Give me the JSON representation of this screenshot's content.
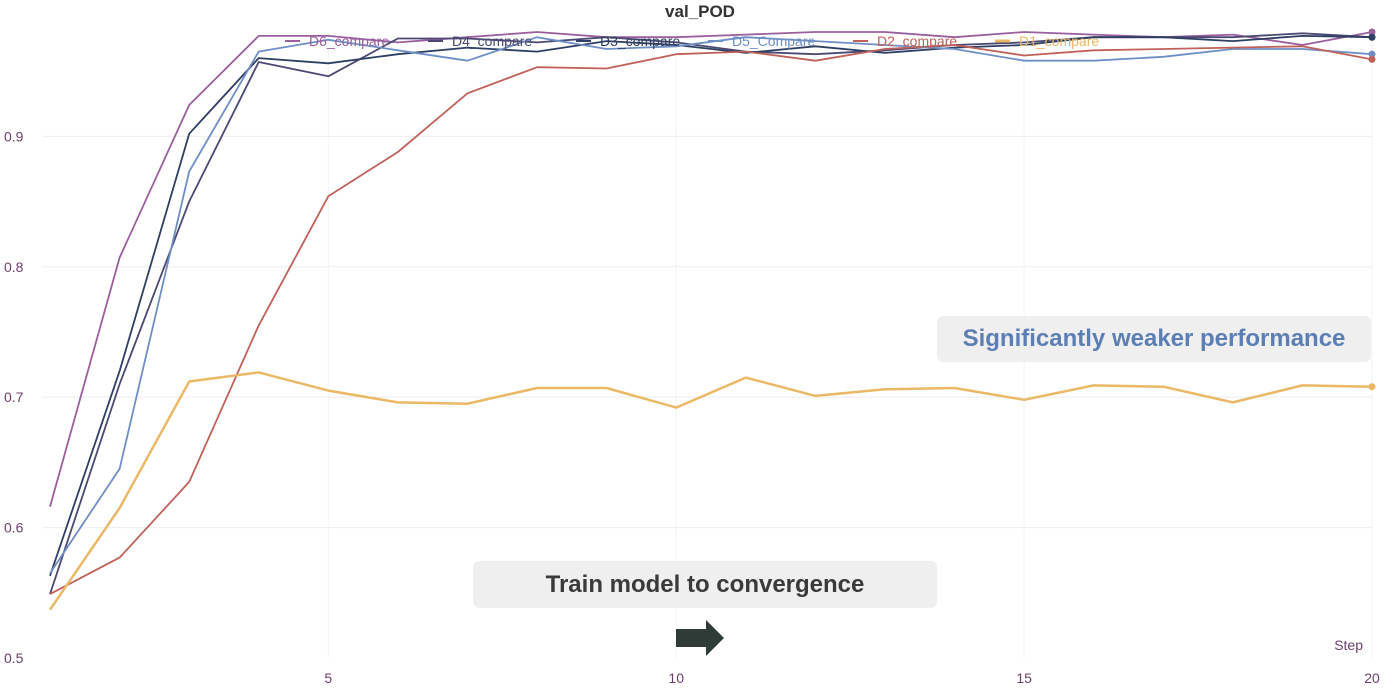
{
  "chart_data": {
    "type": "line",
    "title": "val_POD",
    "xlabel": "Step",
    "ylabel": "",
    "xlim": [
      1,
      20
    ],
    "ylim": [
      0.5,
      0.98
    ],
    "yticks": [
      0.5,
      0.6,
      0.7,
      0.8,
      0.9
    ],
    "xticks": [
      5,
      10,
      15,
      20
    ],
    "grid": true,
    "legend_position": "top",
    "x": [
      1,
      2,
      3,
      4,
      5,
      6,
      7,
      8,
      9,
      10,
      11,
      12,
      13,
      14,
      15,
      16,
      17,
      18,
      19,
      20
    ],
    "series": [
      {
        "name": "D6_compare",
        "color": "#9b5f9e",
        "values": [
          0.616,
          0.807,
          0.924,
          0.977,
          0.977,
          0.972,
          0.976,
          0.98,
          0.976,
          0.976,
          0.978,
          0.98,
          0.98,
          0.976,
          0.98,
          0.978,
          0.976,
          0.978,
          0.97,
          0.98
        ]
      },
      {
        "name": "D4_compare",
        "color": "#4a4a72",
        "values": [
          0.549,
          0.71,
          0.85,
          0.957,
          0.946,
          0.975,
          0.975,
          0.972,
          0.976,
          0.972,
          0.965,
          0.963,
          0.966,
          0.97,
          0.972,
          0.976,
          0.976,
          0.976,
          0.979,
          0.976
        ]
      },
      {
        "name": "D3_compare",
        "color": "#2e3f63",
        "values": [
          0.563,
          0.72,
          0.902,
          0.96,
          0.956,
          0.963,
          0.968,
          0.965,
          0.973,
          0.97,
          0.964,
          0.969,
          0.964,
          0.968,
          0.97,
          0.976,
          0.976,
          0.973,
          0.977,
          0.976
        ]
      },
      {
        "name": "D5_Compare",
        "color": "#6e8fc6",
        "values": [
          0.565,
          0.645,
          0.873,
          0.965,
          0.974,
          0.966,
          0.958,
          0.976,
          0.967,
          0.969,
          0.976,
          0.973,
          0.97,
          0.967,
          0.958,
          0.958,
          0.961,
          0.967,
          0.967,
          0.963
        ]
      },
      {
        "name": "D2_compare",
        "color": "#c0615a",
        "values": [
          0.549,
          0.577,
          0.635,
          0.755,
          0.854,
          0.888,
          0.933,
          0.953,
          0.952,
          0.963,
          0.965,
          0.958,
          0.967,
          0.97,
          0.962,
          0.966,
          0.967,
          0.968,
          0.969,
          0.959
        ]
      },
      {
        "name": "D1_compare",
        "color": "#ebb865",
        "values": [
          0.537,
          0.615,
          0.712,
          0.719,
          0.705,
          0.696,
          0.695,
          0.707,
          0.707,
          0.692,
          0.715,
          0.701,
          0.706,
          0.707,
          0.698,
          0.709,
          0.708,
          0.696,
          0.709,
          0.708
        ]
      }
    ],
    "annotations": [
      "Significantly weaker performance",
      "Train model to convergence"
    ]
  }
}
